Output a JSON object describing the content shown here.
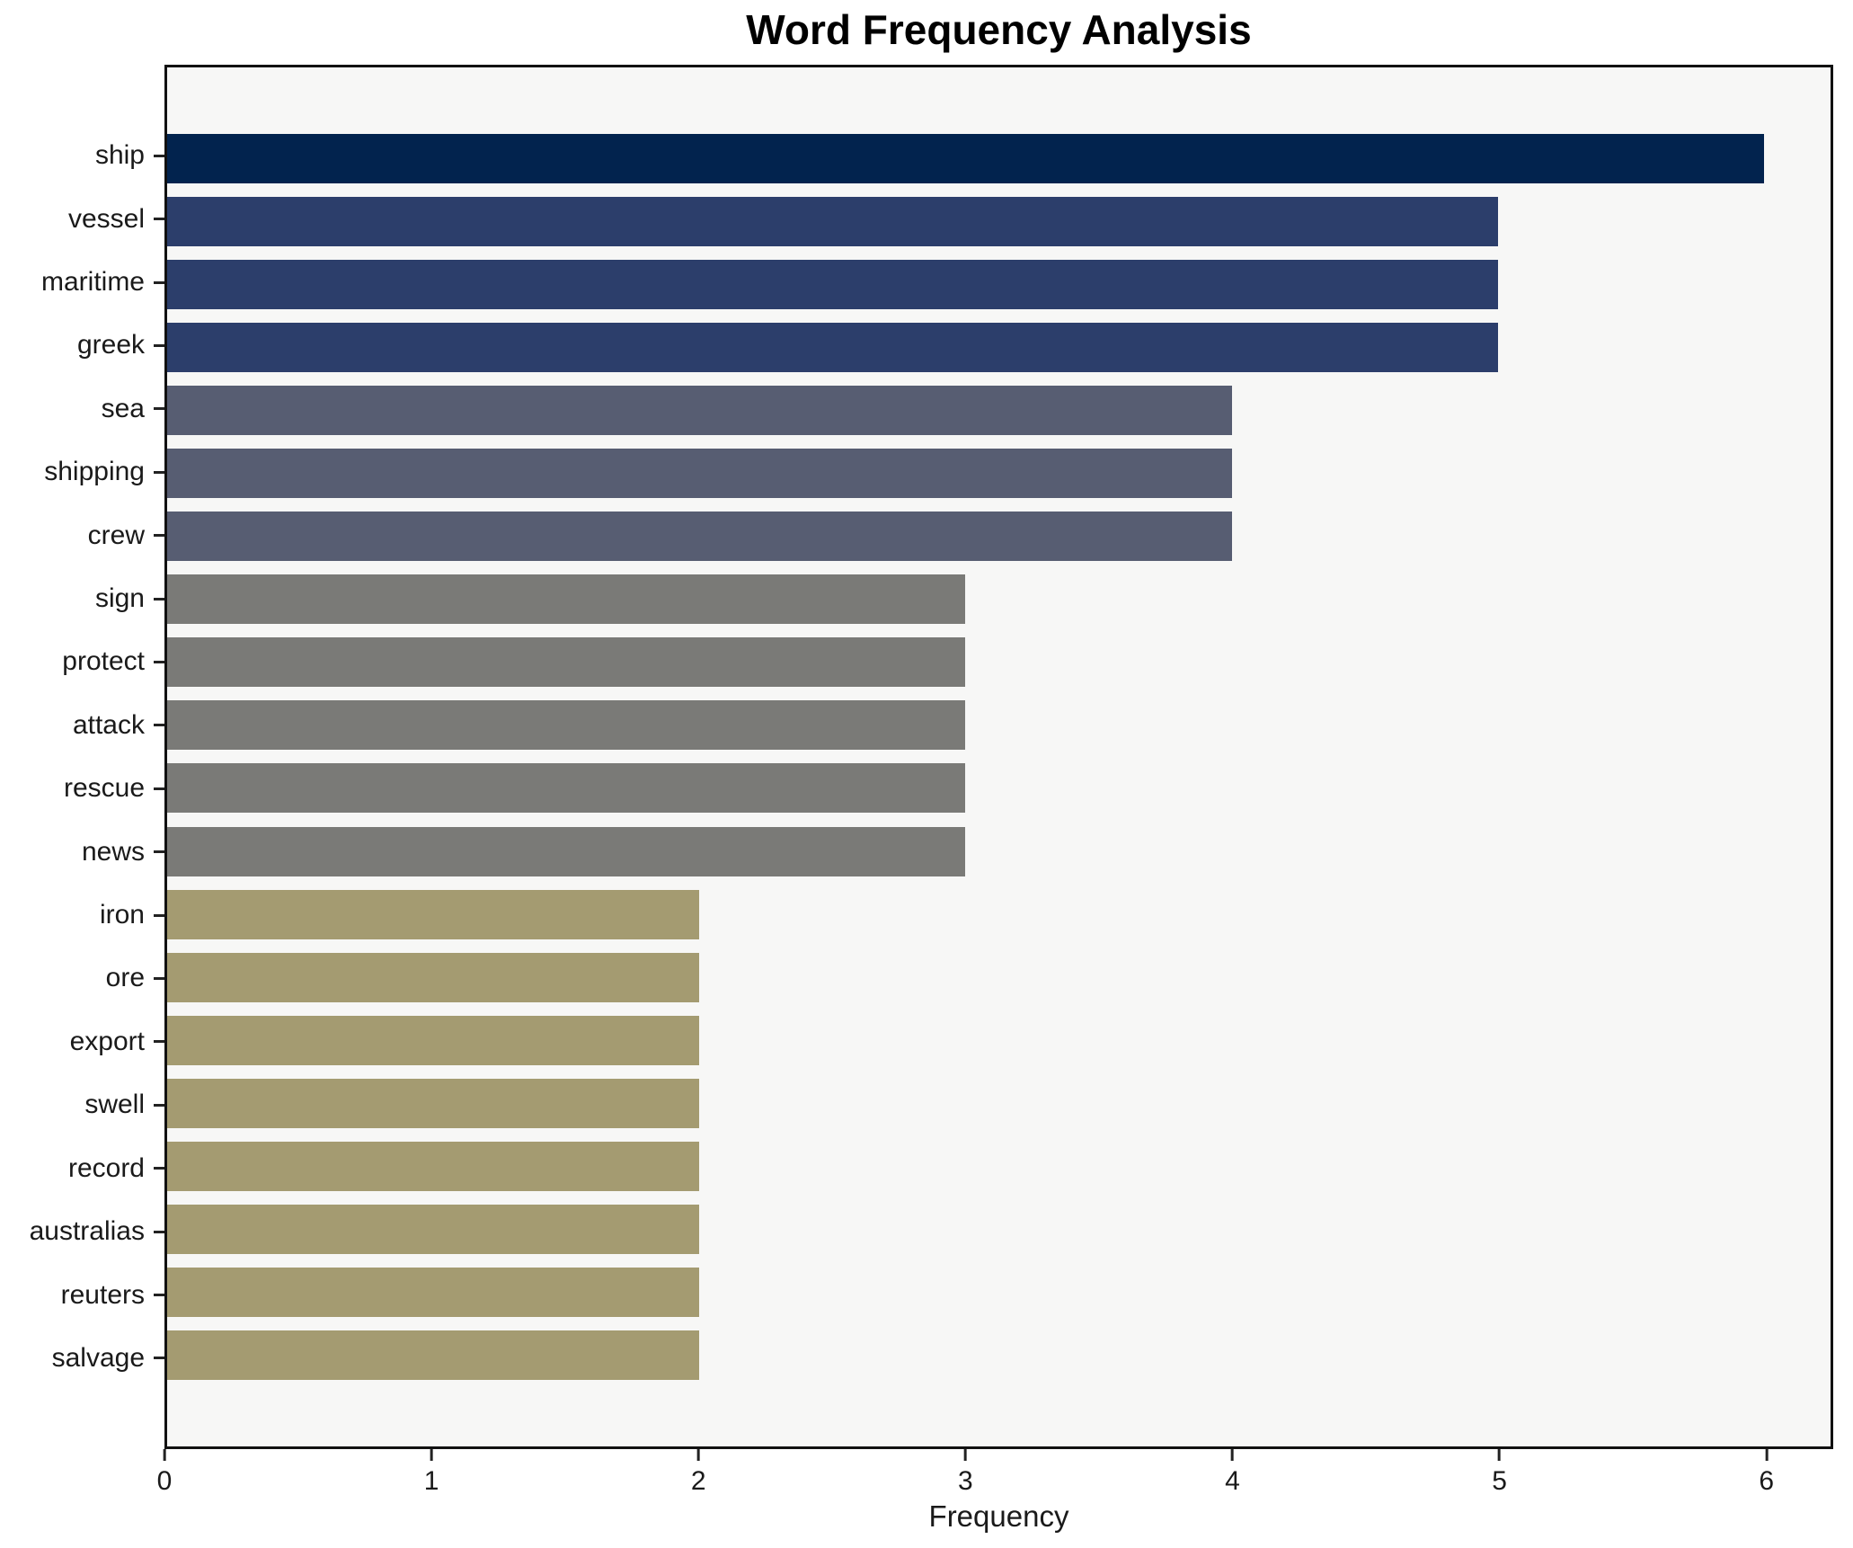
{
  "chart_data": {
    "type": "bar",
    "orientation": "horizontal",
    "title": "Word Frequency Analysis",
    "xlabel": "Frequency",
    "ylabel": "",
    "categories": [
      "ship",
      "vessel",
      "maritime",
      "greek",
      "sea",
      "shipping",
      "crew",
      "sign",
      "protect",
      "attack",
      "rescue",
      "news",
      "iron",
      "ore",
      "export",
      "swell",
      "record",
      "australias",
      "reuters",
      "salvage"
    ],
    "values": [
      6,
      5,
      5,
      5,
      4,
      4,
      4,
      3,
      3,
      3,
      3,
      3,
      2,
      2,
      2,
      2,
      2,
      2,
      2,
      2
    ],
    "bar_colors": [
      "#02234e",
      "#2c3e6b",
      "#2c3e6b",
      "#2c3e6b",
      "#575d72",
      "#575d72",
      "#575d72",
      "#7a7a77",
      "#7a7a77",
      "#7a7a77",
      "#7a7a77",
      "#7a7a77",
      "#a49b71",
      "#a49b71",
      "#a49b71",
      "#a49b71",
      "#a49b71",
      "#a49b71",
      "#a49b71",
      "#a49b71"
    ],
    "x_ticks": [
      0,
      1,
      2,
      3,
      4,
      5,
      6
    ],
    "xlim": [
      0,
      6.25
    ],
    "grid": false,
    "legend": "none",
    "plot_background": "#f7f7f6",
    "outer_background": "#ffffff",
    "axis_color": "#111111"
  }
}
